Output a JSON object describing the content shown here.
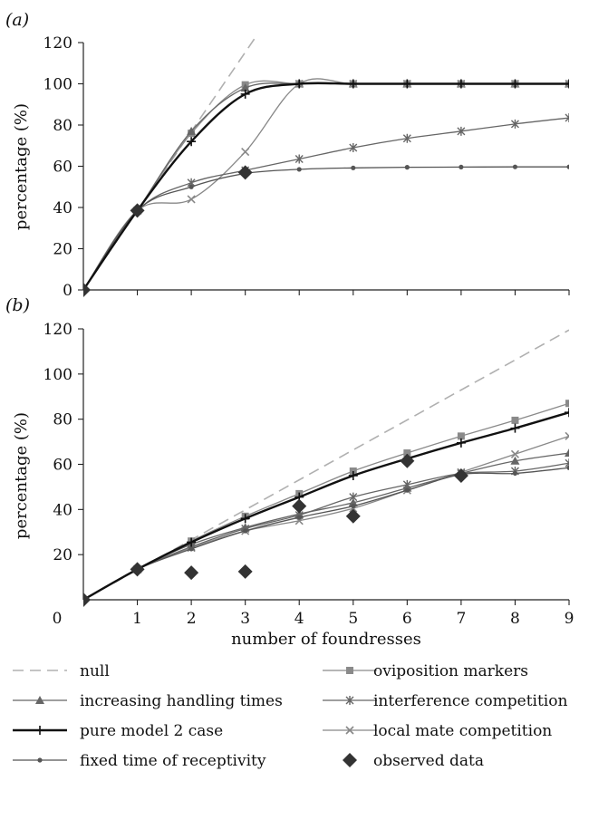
{
  "xlabel": "number of foundresses",
  "legend": [
    {
      "name": "null",
      "style": "dashed",
      "marker": "none",
      "color": "#b0b0b0",
      "width": 1.6
    },
    {
      "name": "oviposition markers",
      "style": "solid",
      "marker": "square",
      "color": "#8a8a8a",
      "width": 1.3
    },
    {
      "name": "increasing handling times",
      "style": "solid",
      "marker": "triangle",
      "color": "#666666",
      "width": 1.3
    },
    {
      "name": "interference competition",
      "style": "solid",
      "marker": "asterisk",
      "color": "#666666",
      "width": 1.3
    },
    {
      "name": "pure model 2 case",
      "style": "solid",
      "marker": "plus",
      "color": "#111111",
      "width": 2.4
    },
    {
      "name": "local mate competition",
      "style": "solid",
      "marker": "cross",
      "color": "#888888",
      "width": 1.3
    },
    {
      "name": "fixed time of receptivity",
      "style": "solid",
      "marker": "dot",
      "color": "#555555",
      "width": 1.3
    },
    {
      "name": "observed data",
      "style": "none",
      "marker": "diamond",
      "color": "#333333",
      "width": 0
    }
  ],
  "chart_data": [
    {
      "type": "line",
      "panel_label": "(a)",
      "ylabel": "percentage (%)",
      "xlim": [
        0,
        9
      ],
      "ylim": [
        0,
        120
      ],
      "yticks": [
        0,
        20,
        40,
        60,
        80,
        100,
        120
      ],
      "x_tick_labels_shown": false,
      "series": [
        {
          "name": "null",
          "x": [
            0,
            1,
            2,
            3,
            3.2
          ],
          "values": [
            0,
            38.5,
            77,
            115.5,
            123
          ]
        },
        {
          "name": "oviposition markers",
          "x": [
            0,
            1,
            2,
            3,
            4,
            5,
            6,
            7,
            8,
            9
          ],
          "values": [
            0,
            38.5,
            76,
            99.5,
            100,
            100,
            100,
            100,
            100,
            100
          ]
        },
        {
          "name": "increasing handling times",
          "x": [
            0,
            1,
            2,
            3,
            4,
            5,
            6,
            7,
            8,
            9
          ],
          "values": [
            0,
            38.5,
            77,
            98,
            100,
            100,
            100,
            100,
            100,
            100
          ]
        },
        {
          "name": "pure model 2 case",
          "x": [
            0,
            1,
            2,
            3,
            4,
            5,
            6,
            7,
            8,
            9
          ],
          "values": [
            0,
            38.5,
            72,
            95,
            100,
            100,
            100,
            100,
            100,
            100
          ]
        },
        {
          "name": "local mate competition",
          "x": [
            0,
            1,
            2,
            3,
            4,
            5,
            6,
            7,
            8,
            9
          ],
          "values": [
            0,
            38.5,
            44,
            67,
            100,
            100,
            100,
            100,
            100,
            100
          ]
        },
        {
          "name": "interference competition",
          "x": [
            0,
            1,
            2,
            3,
            4,
            5,
            6,
            7,
            8,
            9
          ],
          "values": [
            0,
            38.5,
            52,
            58,
            63.5,
            69,
            73.5,
            77,
            80.5,
            83.5
          ]
        },
        {
          "name": "fixed time of receptivity",
          "x": [
            0,
            1,
            2,
            3,
            4,
            5,
            6,
            7,
            8,
            9
          ],
          "values": [
            0,
            38.5,
            50,
            56.5,
            58.5,
            59.2,
            59.5,
            59.6,
            59.7,
            59.7
          ]
        },
        {
          "name": "observed data",
          "x": [
            0,
            1,
            3
          ],
          "values": [
            0,
            38.5,
            57
          ]
        }
      ]
    },
    {
      "type": "line",
      "panel_label": "(b)",
      "ylabel": "percentage (%)",
      "xlim": [
        0,
        9
      ],
      "ylim": [
        0,
        120
      ],
      "yticks": [
        20,
        40,
        60,
        80,
        100,
        120
      ],
      "x_tick_labels": [
        "0",
        "1",
        "2",
        "3",
        "4",
        "5",
        "6",
        "7",
        "8",
        "9"
      ],
      "series": [
        {
          "name": "null",
          "x": [
            0,
            9
          ],
          "values": [
            0,
            119.5
          ]
        },
        {
          "name": "oviposition markers",
          "x": [
            0,
            1,
            2,
            3,
            4,
            5,
            6,
            7,
            8,
            9
          ],
          "values": [
            0,
            13.5,
            26,
            37,
            47,
            57,
            65,
            72.5,
            79.5,
            87
          ]
        },
        {
          "name": "pure model 2 case",
          "x": [
            0,
            1,
            2,
            3,
            4,
            5,
            6,
            7,
            8,
            9
          ],
          "values": [
            0,
            13.5,
            25.5,
            36,
            45.5,
            55,
            62.5,
            69.5,
            76,
            83
          ]
        },
        {
          "name": "local mate competition",
          "x": [
            0,
            1,
            2,
            3,
            4,
            5,
            6,
            7,
            8,
            9
          ],
          "values": [
            0,
            13.5,
            23,
            30.5,
            35,
            40.5,
            48.5,
            56.5,
            64.5,
            72.5
          ]
        },
        {
          "name": "increasing handling times",
          "x": [
            0,
            1,
            2,
            3,
            4,
            5,
            6,
            7,
            8,
            9
          ],
          "values": [
            0,
            13.5,
            24.5,
            32,
            38,
            43,
            49.5,
            56,
            61.5,
            65
          ]
        },
        {
          "name": "interference competition",
          "x": [
            0,
            1,
            2,
            3,
            4,
            5,
            6,
            7,
            8,
            9
          ],
          "values": [
            0,
            13.5,
            23.5,
            31.5,
            37.5,
            45.5,
            51,
            56,
            57,
            60.5
          ]
        },
        {
          "name": "fixed time of receptivity",
          "x": [
            0,
            1,
            2,
            3,
            4,
            5,
            6,
            7,
            8,
            9
          ],
          "values": [
            0,
            13.5,
            22.5,
            30.5,
            36.5,
            41.5,
            48.5,
            55.5,
            56,
            58.5
          ]
        },
        {
          "name": "observed data",
          "x": [
            0,
            1,
            2,
            3,
            4,
            5,
            6,
            7
          ],
          "values": [
            0,
            13.5,
            12,
            12.5,
            41.5,
            37,
            61.5,
            55
          ]
        }
      ]
    }
  ]
}
